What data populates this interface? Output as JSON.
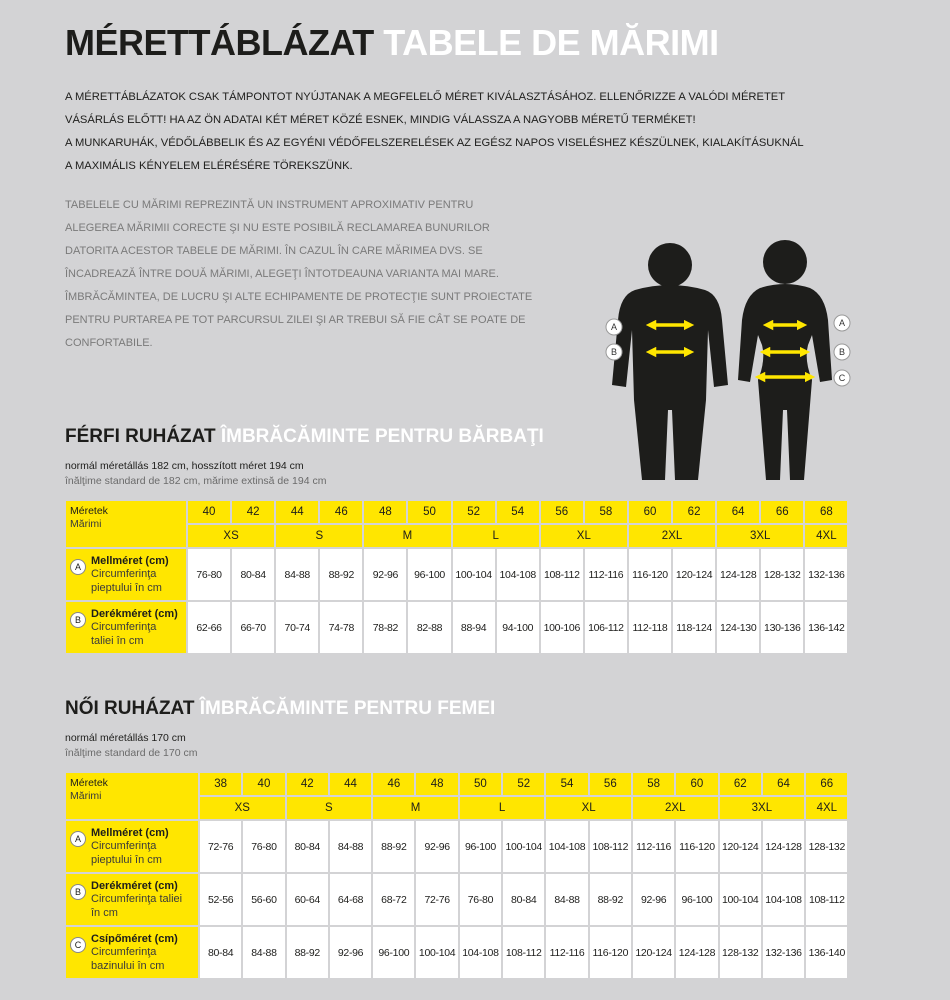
{
  "header": {
    "title_hu": "MÉRETTÁBLÁZAT",
    "title_ro": "TABELE DE MĂRIMI"
  },
  "intro_hu": [
    "A MÉRETTÁBLÁZATOK CSAK TÁMPONTOT NYÚJTANAK A MEGFELELŐ MÉRET KIVÁLASZTÁSÁHOZ. ELLENŐRIZZE A VALÓDI MÉRETET",
    "VÁSÁRLÁS ELŐTT! HA AZ ÖN ADATAI KÉT MÉRET KÖZÉ ESNEK, MINDIG VÁLASSZA A NAGYOBB MÉRETŰ TERMÉKET!",
    "A MUNKARUHÁK, VÉDŐLÁBBELIK ÉS AZ EGYÉNI VÉDŐFELSZERELÉSEK AZ EGÉSZ NAPOS VISELÉSHEZ KÉSZÜLNEK, KIALAKÍTÁSUKNÁL",
    "A MAXIMÁLIS KÉNYELEM ELÉRÉSÉRE TÖREKSZÜNK."
  ],
  "intro_ro": [
    "TABELELE CU MĂRIMI REPREZINTĂ UN INSTRUMENT APROXIMATIV PENTRU",
    "ALEGEREA MĂRIMII CORECTE ŞI NU ESTE POSIBILĂ RECLAMAREA BUNURILOR",
    "DATORITA ACESTOR TABELE DE MĂRIMI. ÎN CAZUL ÎN CARE MĂRIMEA DVS. SE",
    "ÎNCADREAZĂ ÎNTRE DOUĂ MĂRIMI, ALEGEŢI ÎNTOTDEAUNA VARIANTA MAI MARE.",
    "ÎMBRĂCĂMINTEA, DE LUCRU ŞI ALTE ECHIPAMENTE DE PROTECŢIE SUNT PROIECTATE",
    "PENTRU PURTAREA PE TOT PARCURSUL ZILEI ŞI AR TREBUI SĂ FIE CÂT SE POATE DE",
    "CONFORTABILE."
  ],
  "figure": {
    "male_labels": [
      "A",
      "B"
    ],
    "female_labels": [
      "A",
      "B",
      "C"
    ]
  },
  "sections": [
    {
      "title_hu": "FÉRFI RUHÁZAT",
      "title_ro": "ÎMBRĂCĂMINTE PENTRU BĂRBAŢI",
      "notes": [
        "normál méretállás 182 cm, hosszított méret 194 cm",
        "înălţime standard de 182 cm, mărime extinsă de 194 cm"
      ],
      "table": {
        "header_label": [
          "Méretek",
          "Mărimi"
        ],
        "sizes": [
          40,
          42,
          44,
          46,
          48,
          50,
          52,
          54,
          56,
          58,
          60,
          62,
          64,
          66,
          68
        ],
        "groups": [
          "XS",
          "S",
          "M",
          "L",
          "XL",
          "2XL",
          "3XL",
          "4XL"
        ],
        "rows": [
          {
            "marker": "A",
            "name": "Mellméret (cm)",
            "desc": "Circumferinţa pieptului în cm",
            "values": [
              "76-80",
              "80-84",
              "84-88",
              "88-92",
              "92-96",
              "96-100",
              "100-104",
              "104-108",
              "108-112",
              "112-116",
              "116-120",
              "120-124",
              "124-128",
              "128-132",
              "132-136"
            ]
          },
          {
            "marker": "B",
            "name": "Derékméret (cm)",
            "desc": "Circumferinţa taliei în cm",
            "values": [
              "62-66",
              "66-70",
              "70-74",
              "74-78",
              "78-82",
              "82-88",
              "88-94",
              "94-100",
              "100-106",
              "106-112",
              "112-118",
              "118-124",
              "124-130",
              "130-136",
              "136-142"
            ]
          }
        ]
      }
    },
    {
      "title_hu": "NŐI RUHÁZAT",
      "title_ro": "ÎMBRĂCĂMINTE PENTRU FEMEI",
      "notes": [
        "normál méretállás 170 cm",
        "înălţime standard de 170 cm"
      ],
      "table": {
        "header_label": [
          "Méretek",
          "Mărimi"
        ],
        "sizes": [
          38,
          40,
          42,
          44,
          46,
          48,
          50,
          52,
          54,
          56,
          58,
          60,
          62,
          64,
          66
        ],
        "groups": [
          "XS",
          "S",
          "M",
          "L",
          "XL",
          "2XL",
          "3XL",
          "4XL"
        ],
        "rows": [
          {
            "marker": "A",
            "name": "Mellméret (cm)",
            "desc": "Circumferinţa pieptului în cm",
            "values": [
              "72-76",
              "76-80",
              "80-84",
              "84-88",
              "88-92",
              "92-96",
              "96-100",
              "100-104",
              "104-108",
              "108-112",
              "112-116",
              "116-120",
              "120-124",
              "124-128",
              "128-132"
            ]
          },
          {
            "marker": "B",
            "name": "Derékméret (cm)",
            "desc": "Circumferinţa taliei în cm",
            "values": [
              "52-56",
              "56-60",
              "60-64",
              "64-68",
              "68-72",
              "72-76",
              "76-80",
              "80-84",
              "84-88",
              "88-92",
              "92-96",
              "96-100",
              "100-104",
              "104-108",
              "108-112"
            ]
          },
          {
            "marker": "C",
            "name": "Csípőméret (cm)",
            "desc": "Circumferinţa bazinului în cm",
            "values": [
              "80-84",
              "84-88",
              "88-92",
              "92-96",
              "96-100",
              "100-104",
              "104-108",
              "108-112",
              "112-116",
              "116-120",
              "120-124",
              "124-128",
              "128-132",
              "132-136",
              "136-140"
            ]
          }
        ]
      }
    }
  ]
}
